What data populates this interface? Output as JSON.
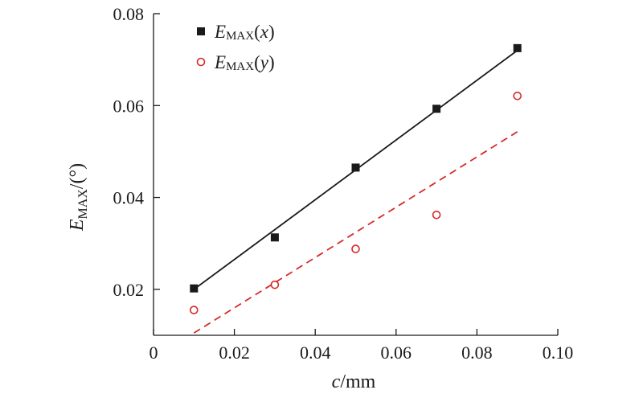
{
  "chart_data": {
    "type": "scatter",
    "x_axis": {
      "ticks": [
        0,
        0.02,
        0.04,
        0.06,
        0.08,
        0.1
      ],
      "tick_labels": [
        "0",
        "0.02",
        "0.04",
        "0.06",
        "0.08",
        "0.10"
      ],
      "label_main": "c",
      "label_unit": "/mm",
      "range": [
        0,
        0.1
      ]
    },
    "y_axis": {
      "ticks": [
        0.02,
        0.04,
        0.06,
        0.08
      ],
      "tick_labels": [
        "0.02",
        "0.04",
        "0.06",
        "0.08"
      ],
      "label_main": "E",
      "label_sub": "MAX",
      "label_unit": "/(°)",
      "range": [
        0.01,
        0.08
      ]
    },
    "grid": false,
    "legend_position": "top-left",
    "series": [
      {
        "name": "E_MAX(x)",
        "legend_main": "E",
        "legend_sub": "MAX",
        "legend_arg": "(x)",
        "marker": "filled-square",
        "color": "#1a1a1a",
        "x": [
          0.01,
          0.03,
          0.05,
          0.07,
          0.09
        ],
        "y": [
          0.0202,
          0.0313,
          0.0465,
          0.0593,
          0.0725
        ],
        "fit": {
          "style": "solid",
          "x": [
            0.01,
            0.09
          ],
          "y": [
            0.02,
            0.072
          ]
        }
      },
      {
        "name": "E_MAX(y)",
        "legend_main": "E",
        "legend_sub": "MAX",
        "legend_arg": "(y)",
        "marker": "open-circle",
        "color": "#d62a2a",
        "x": [
          0.01,
          0.03,
          0.05,
          0.07,
          0.09
        ],
        "y": [
          0.0155,
          0.021,
          0.0288,
          0.0362,
          0.0621
        ],
        "fit": {
          "style": "dashed",
          "x": [
            0.01,
            0.09
          ],
          "y": [
            0.0105,
            0.0543
          ]
        }
      }
    ]
  }
}
